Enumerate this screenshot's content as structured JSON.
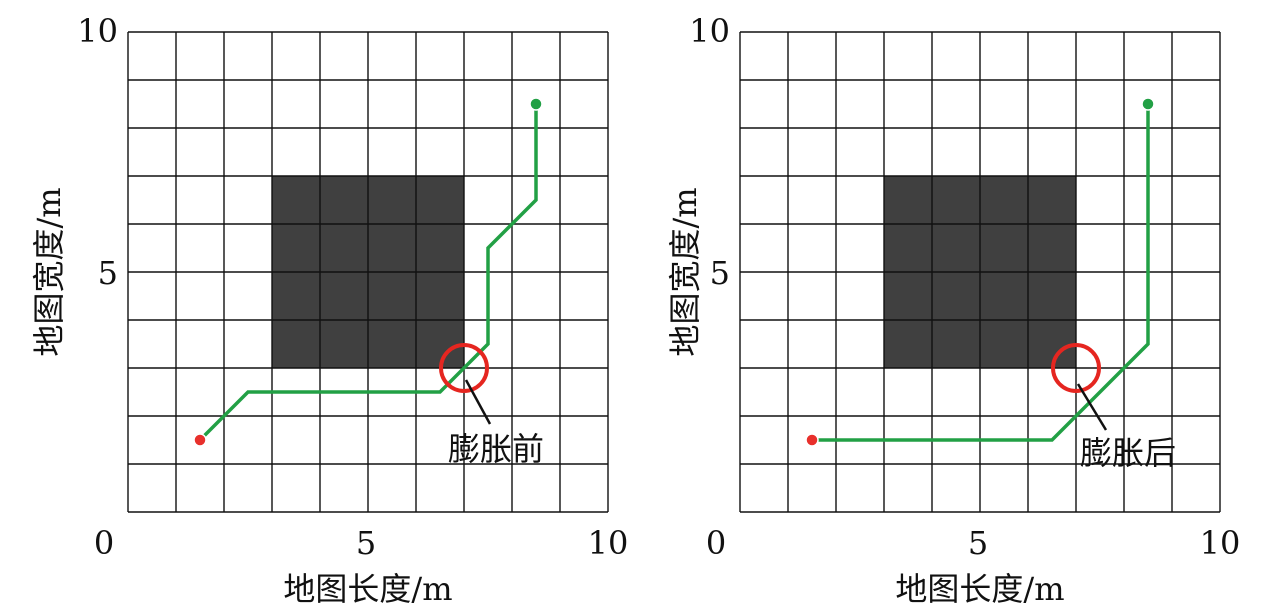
{
  "chart_data": [
    {
      "type": "grid-path",
      "xlabel": "地图长度/m",
      "ylabel": "地图宽度/m",
      "xlim": [
        0,
        10
      ],
      "ylim": [
        0,
        10
      ],
      "x_ticks": [
        "0",
        "5",
        "10"
      ],
      "y_ticks": [
        "5",
        "10"
      ],
      "grid_step": 1,
      "obstacle": {
        "x": [
          3,
          7
        ],
        "y": [
          3,
          7
        ],
        "color": "#404040"
      },
      "path": {
        "color": "#22a045",
        "points": [
          [
            1.5,
            1.5
          ],
          [
            2.5,
            2.5
          ],
          [
            6.5,
            2.5
          ],
          [
            7.5,
            3.5
          ],
          [
            7.5,
            5.5
          ],
          [
            8.5,
            6.5
          ],
          [
            8.5,
            8.5
          ]
        ]
      },
      "start": {
        "x": 1.5,
        "y": 1.5,
        "color": "#e8302c"
      },
      "goal": {
        "x": 8.5,
        "y": 8.5,
        "color": "#22a045"
      },
      "highlight": {
        "x": 7,
        "y": 3,
        "color": "#e52620"
      },
      "annotation": "膨胀前"
    },
    {
      "type": "grid-path",
      "xlabel": "地图长度/m",
      "ylabel": "地图宽度/m",
      "xlim": [
        0,
        10
      ],
      "ylim": [
        0,
        10
      ],
      "x_ticks": [
        "0",
        "5",
        "10"
      ],
      "y_ticks": [
        "5",
        "10"
      ],
      "grid_step": 1,
      "obstacle": {
        "x": [
          3,
          7
        ],
        "y": [
          3,
          7
        ],
        "color": "#404040"
      },
      "path": {
        "color": "#22a045",
        "points": [
          [
            1.5,
            1.5
          ],
          [
            6.5,
            1.5
          ],
          [
            8.5,
            3.5
          ],
          [
            8.5,
            8.5
          ]
        ]
      },
      "start": {
        "x": 1.5,
        "y": 1.5,
        "color": "#e8302c"
      },
      "goal": {
        "x": 8.5,
        "y": 8.5,
        "color": "#22a045"
      },
      "highlight": {
        "x": 7,
        "y": 3,
        "color": "#e52620"
      },
      "annotation": "膨胀后"
    }
  ]
}
